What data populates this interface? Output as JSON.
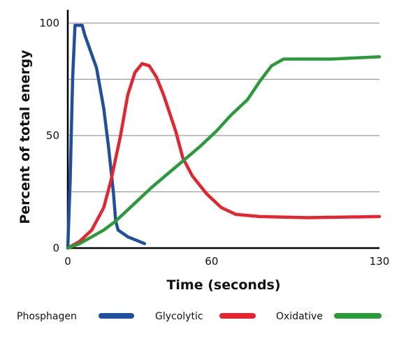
{
  "chart_data": {
    "type": "line",
    "xlabel": "Time (seconds)",
    "ylabel": "Percent of total energy",
    "xlim": [
      0,
      130
    ],
    "ylim": [
      0,
      100
    ],
    "x_ticks": [
      0,
      60,
      130
    ],
    "y_ticks": [
      0,
      50,
      100
    ],
    "gridlines_y": [
      25,
      50,
      75,
      100
    ],
    "grid": true,
    "legend_position": "bottom",
    "series": [
      {
        "name": "Phosphagen",
        "color": "#1f4fa0",
        "points": [
          [
            0,
            0
          ],
          [
            1,
            30
          ],
          [
            2,
            75
          ],
          [
            3,
            99
          ],
          [
            6,
            99
          ],
          [
            7,
            95
          ],
          [
            12,
            80
          ],
          [
            15,
            62
          ],
          [
            17,
            45
          ],
          [
            19,
            25
          ],
          [
            20,
            12
          ],
          [
            21,
            8
          ],
          [
            25,
            5
          ],
          [
            32,
            2
          ]
        ]
      },
      {
        "name": "Glycolytic",
        "color": "#e8232e",
        "points": [
          [
            0,
            0
          ],
          [
            5,
            3
          ],
          [
            10,
            8
          ],
          [
            15,
            18
          ],
          [
            18,
            30
          ],
          [
            22,
            50
          ],
          [
            25,
            68
          ],
          [
            28,
            78
          ],
          [
            31,
            82
          ],
          [
            34,
            81
          ],
          [
            37,
            76
          ],
          [
            40,
            68
          ],
          [
            45,
            52
          ],
          [
            48,
            40
          ],
          [
            52,
            32
          ],
          [
            58,
            24
          ],
          [
            64,
            18
          ],
          [
            70,
            15
          ],
          [
            80,
            14
          ],
          [
            100,
            13.5
          ],
          [
            130,
            14
          ]
        ]
      },
      {
        "name": "Oxidative",
        "color": "#2a9b3a",
        "points": [
          [
            0,
            0
          ],
          [
            5,
            2
          ],
          [
            10,
            5
          ],
          [
            15,
            8
          ],
          [
            20,
            12
          ],
          [
            25,
            17
          ],
          [
            35,
            27
          ],
          [
            45,
            36
          ],
          [
            55,
            45
          ],
          [
            62,
            52
          ],
          [
            68,
            59
          ],
          [
            75,
            66
          ],
          [
            80,
            74
          ],
          [
            85,
            81
          ],
          [
            90,
            84
          ],
          [
            100,
            84
          ],
          [
            110,
            84
          ],
          [
            120,
            84.5
          ],
          [
            130,
            85
          ]
        ]
      }
    ]
  }
}
